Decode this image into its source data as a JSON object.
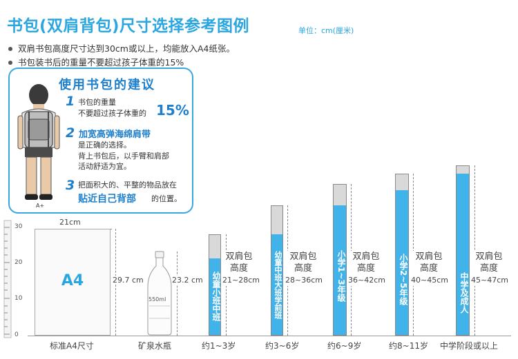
{
  "header": {
    "title": "书包(双肩背包)尺寸选择参考图例",
    "unit": "单位：cm(厘米)",
    "bullets": [
      "双肩书包高度尺寸达到30cm或以上，均能放入A4纸张。",
      "书包装书后的重量不要超过孩子体重的15%"
    ]
  },
  "advice": {
    "title": "使用书包的建议",
    "figure_label": "A+",
    "tip1": {
      "num": "1",
      "line1": "书包的重量",
      "line2": "不要超过孩子体重的",
      "big": "15%"
    },
    "tip2": {
      "num": "2",
      "headline": "加宽高弹海绵肩带",
      "line1": "是正确的选择。",
      "line2": "背上书包后，以手臂和肩部",
      "line3": "活动舒适为宜。"
    },
    "tip3": {
      "num": "3",
      "line1": "把面积大的、平整的物品放在",
      "strong": "贴近自己背部",
      "line2": "的位置。"
    }
  },
  "scale": {
    "ticks": [
      "30",
      "20",
      "10",
      "0"
    ]
  },
  "items": {
    "a4": {
      "label": "A4",
      "width": "21cm",
      "height": "29.7 cm",
      "caption": "标准A4尺寸"
    },
    "bottle": {
      "volume": "550ml",
      "height": "23.2 cm",
      "caption": "矿泉水瓶"
    },
    "bags": [
      {
        "vertical": "幼童小班中班",
        "title_line1": "双肩包",
        "title_line2": "高度",
        "range": "21~28cm",
        "caption": "约1~3岁"
      },
      {
        "vertical": "幼童中班大班学前班",
        "title_line1": "双肩包",
        "title_line2": "高度",
        "range": "28~36cm",
        "caption": "约3~6岁"
      },
      {
        "vertical": "小学1~3年级",
        "title_line1": "双肩包",
        "title_line2": "高度",
        "range": "36~42cm",
        "caption": "约6~9岁"
      },
      {
        "vertical": "小学2~5年级",
        "title_line1": "双肩包",
        "title_line2": "高度",
        "range": "40~45cm",
        "caption": "约8~11岁"
      },
      {
        "vertical": "中学及成人",
        "title_line1": "双肩包",
        "title_line2": "高度",
        "range": "45~47cm",
        "caption": "中学阶段或以上"
      }
    ]
  },
  "colors": {
    "accent": "#2aa6e0",
    "bag_blue": "#3fb3ea",
    "bag_gray": "#d9d9d9"
  }
}
